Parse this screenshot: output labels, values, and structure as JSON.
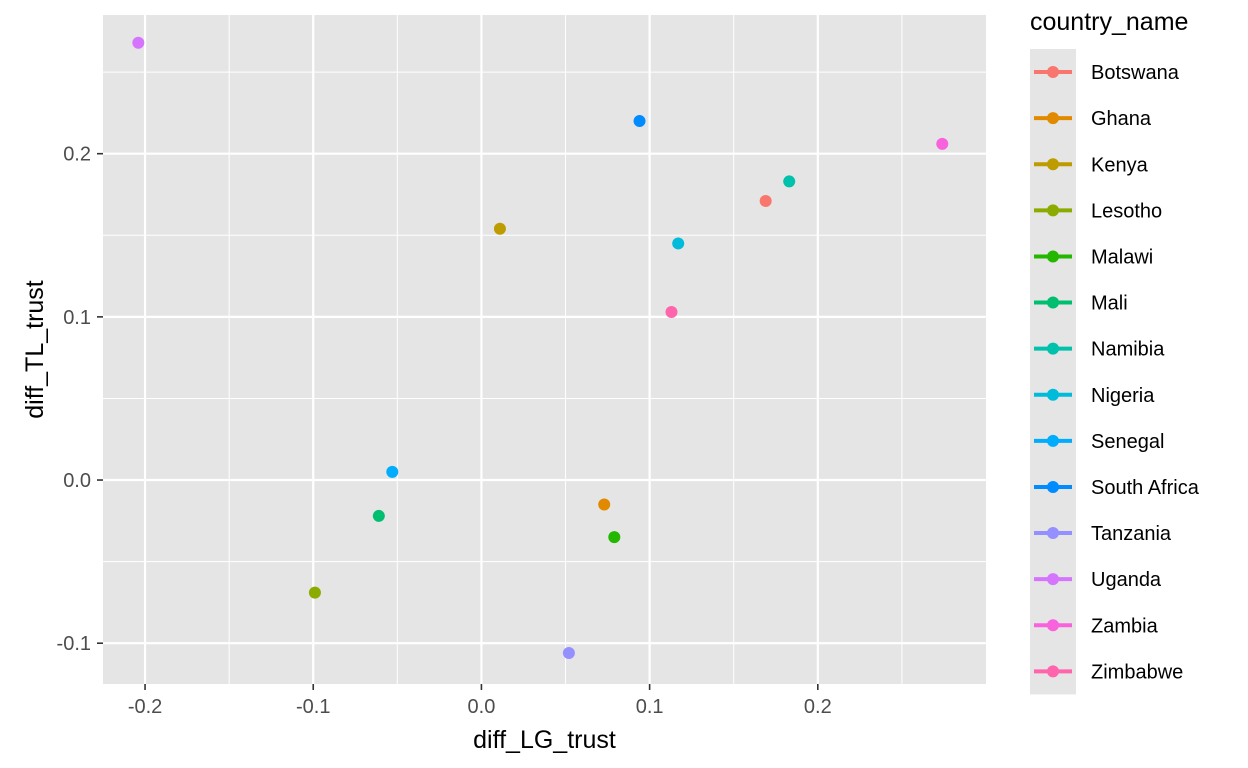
{
  "chart_data": {
    "type": "scatter",
    "xlabel": "diff_LG_trust",
    "ylabel": "diff_TL_trust",
    "xlim": [
      -0.225,
      0.3
    ],
    "ylim": [
      -0.125,
      0.285
    ],
    "x_ticks": [
      -0.2,
      -0.1,
      0.0,
      0.1,
      0.2
    ],
    "x_tick_labels": [
      "-0.2",
      "-0.1",
      "0.0",
      "0.1",
      "0.2"
    ],
    "y_ticks": [
      -0.1,
      0.0,
      0.1,
      0.2
    ],
    "y_tick_labels": [
      "-0.1",
      "0.0",
      "0.1",
      "0.2"
    ],
    "grid": true,
    "panel_background": "#E5E5E5",
    "grid_color": "#FFFFFF",
    "legend": {
      "title": "country_name",
      "placement": "right"
    },
    "points": [
      {
        "name": "Botswana",
        "x": 0.169,
        "y": 0.171,
        "color": "#F8766D"
      },
      {
        "name": "Ghana",
        "x": 0.073,
        "y": -0.015,
        "color": "#E18A00"
      },
      {
        "name": "Kenya",
        "x": 0.011,
        "y": 0.154,
        "color": "#BE9C00"
      },
      {
        "name": "Lesotho",
        "x": -0.099,
        "y": -0.069,
        "color": "#8CAB00"
      },
      {
        "name": "Malawi",
        "x": 0.079,
        "y": -0.035,
        "color": "#24B700"
      },
      {
        "name": "Mali",
        "x": -0.061,
        "y": -0.022,
        "color": "#00BE70"
      },
      {
        "name": "Namibia",
        "x": 0.183,
        "y": 0.183,
        "color": "#00C1AB"
      },
      {
        "name": "Nigeria",
        "x": 0.117,
        "y": 0.145,
        "color": "#00BBDA"
      },
      {
        "name": "Senegal",
        "x": -0.053,
        "y": 0.005,
        "color": "#00ACFC"
      },
      {
        "name": "South Africa",
        "x": 0.094,
        "y": 0.22,
        "color": "#008BFF"
      },
      {
        "name": "Tanzania",
        "x": 0.052,
        "y": -0.106,
        "color": "#9590FF"
      },
      {
        "name": "Uganda",
        "x": -0.204,
        "y": 0.268,
        "color": "#D575FE"
      },
      {
        "name": "Zambia",
        "x": 0.274,
        "y": 0.206,
        "color": "#F962DD"
      },
      {
        "name": "Zimbabwe",
        "x": 0.113,
        "y": 0.103,
        "color": "#FF65AC"
      }
    ]
  }
}
